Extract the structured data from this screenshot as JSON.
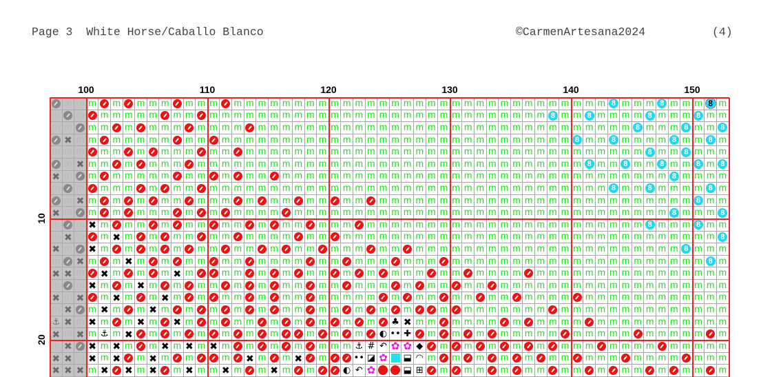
{
  "header": {
    "page_title": "Page 3  White Horse/Caballo Blanco",
    "copyright": "©CarmenArtesana2024",
    "page_number": "(4)"
  },
  "column_labels": [
    "100",
    "110",
    "120",
    "130",
    "140",
    "150"
  ],
  "row_labels": [
    "10",
    "20"
  ],
  "grid": {
    "first_column": 97,
    "shaded_columns": 3,
    "rows": [
      [
        "omm",
        "momommmomm",
        "mommmmmmmm",
        "mmmmmmmmmm",
        "mmmmmmmmmm",
        "mmm8mmm8mm",
        "mTm"
      ],
      [
        "mom",
        "ommmmmommo",
        "mmmmmmmmmm",
        "mmmmmmmmmm",
        "mmmmmmmm8m",
        "m8mmmm8mmm",
        "8mm"
      ],
      [
        "mmo",
        "mmomommmom",
        "mmmommmmmm",
        "mmmmmmmmmm",
        "mmmmmmmmmm",
        "mmmmm8mmm8",
        "mm8"
      ],
      [
        "oxm",
        "mommmmmomm",
        "ommmmmmmmm",
        "mmmmmmmmmm",
        "mmmmmmmmmm",
        "8mm8mmmm8m",
        "m8m"
      ],
      [
        "mmm",
        "ommomommmo",
        "mmommmmmmm",
        "mmmmmmmmmm",
        "mmmmmmmmmm",
        "mmmmmm8mm8",
        "mmm"
      ],
      [
        "omx",
        "mmomommmom",
        "mmmmmmmmmm",
        "mmmmmmmmmm",
        "mmmmmmmmmm",
        "m8mm8mm8mm",
        "8m8"
      ],
      [
        "xmo",
        "mommmmmomm",
        "omommommmm",
        "mmmmmmmmmm",
        "mmmmmmmmmm",
        "mmmmmmmm8m",
        "mmm"
      ],
      [
        "mom",
        "ommmomommo",
        "mmmmmmmmmm",
        "mmmmmmmmmm",
        "mmmmmmmmmm",
        "mmm8mm8mmm",
        "m8m"
      ],
      [
        "omx",
        "momomommom",
        "mmomommomm",
        "ommommmmmm",
        "mmmmmmmmmm",
        "mmmmmmmmmm",
        "8mm"
      ],
      [
        "xmo",
        "momommmomo",
        "mommmmommm",
        "mmmmmmmmmm",
        "mmmmmmmmmm",
        "mmmmmmmm8m",
        "mm8"
      ],
      [
        "mom",
        "xmommomomm",
        "ommomommom",
        "mmommmmmmm",
        "mmmmmmmmmm",
        "mmmmmm8mmm",
        "8mm"
      ],
      [
        "mxm",
        "omxmomommo",
        "mmommmmomm",
        "ommmmmmmmm",
        "mmmmmmmmmm",
        "mmmmmmmmmm",
        "mm8"
      ],
      [
        "xmo",
        "xmomomomom",
        "mommomommo",
        "mmmommommm",
        "mmmmmmmmmm",
        "mmmmmmmmm8",
        "mmm"
      ],
      [
        "mox",
        "momxmomomm",
        "ommommmmom",
        "mommmommmo",
        "mmmmmmmmmm",
        "mmmmmmmmmm",
        "m8m"
      ],
      [
        "xxm",
        "oxmomomxmo",
        "ommomomomm",
        "omomommmom",
        "mommmmommm",
        "mmmmmmmmmm",
        "mmm"
      ],
      [
        "mom",
        "xmomxmomom",
        "momomommom",
        "mommmomomm",
        "ommommmmmm",
        "mmmmmmmmmm",
        "mmm"
      ],
      [
        "xmx",
        "omxmomxmom",
        "ommomommom",
        "mmmmomommo",
        "mmommommmm",
        "ommmmmmmmm",
        "mmm"
      ],
      [
        "mxo",
        "mxmomxmomo",
        "momomommom",
        "momomomoom",
        "ommmmmmmom",
        "mmmmmmmmmm",
        "mmm"
      ],
      [
        "axm",
        "xmomxmoxmo",
        "mommomomom",
        "omomocxmmo",
        "mmmmomommm",
        "mommmmmmmm",
        "mmm"
      ],
      [
        "xmx",
        "mamxomomom",
        "omomomoomo",
        "momohdpomo",
        "momommmmmo",
        "mmmmmommmm",
        "mom"
      ],
      [
        "mxo",
        "xmxmomxmxm",
        "xmomomomom",
        "mma#uffDom",
        "omomomomom",
        "mmommmmomm",
        "mmm"
      ],
      [
        "xxm",
        "xmxomxmomo",
        "omoxmomxom",
        "oodsfqbrmo",
        "momomomomm",
        "ommmommmmo",
        "mmm"
      ],
      [
        "xxx",
        "mxoxmxomxm",
        "mxmomxmomo",
        "ohufRRbkom",
        "ommomommom",
        "momommomom",
        "mom"
      ]
    ]
  },
  "symbols": {
    "m": {
      "icon": "green-m",
      "glyph": "m",
      "color": "#22e322"
    },
    "o": {
      "icon": "red-slashed-circle",
      "color": "#ee1111"
    },
    "8": {
      "icon": "cyan-circle-8",
      "glyph": "8",
      "color": "#22d8f0"
    },
    "T": {
      "icon": "cyan-circle-8-center-marker",
      "glyph": "8",
      "color": "#22d8f0"
    },
    "x": {
      "icon": "black-cross",
      "glyph": "✖",
      "color": "#000000"
    },
    "a": {
      "icon": "anchor",
      "glyph": "⚓"
    },
    "h": {
      "icon": "half-moon",
      "glyph": "◐"
    },
    "d": {
      "icon": "two-dots",
      "glyph": "••"
    },
    "p": {
      "icon": "plus",
      "glyph": "✚"
    },
    "c": {
      "icon": "club",
      "glyph": "♣"
    },
    "#": {
      "icon": "hash",
      "glyph": "#"
    },
    "u": {
      "icon": "u-turn-arrow",
      "glyph": "↶"
    },
    "f": {
      "icon": "magenta-flower",
      "glyph": "✿",
      "color": "#ee11ee"
    },
    "D": {
      "icon": "diamond",
      "glyph": "◆"
    },
    "s": {
      "icon": "half-square",
      "glyph": "◪"
    },
    "q": {
      "icon": "cyan-square",
      "color": "#22e0f0"
    },
    "b": {
      "icon": "half-filled-box",
      "glyph": "⬓"
    },
    "r": {
      "icon": "quarter-arc",
      "glyph": "◠"
    },
    "R": {
      "icon": "red-dot",
      "color": "#ee1111"
    },
    "k": {
      "icon": "cross-box",
      "glyph": "⊞"
    }
  }
}
